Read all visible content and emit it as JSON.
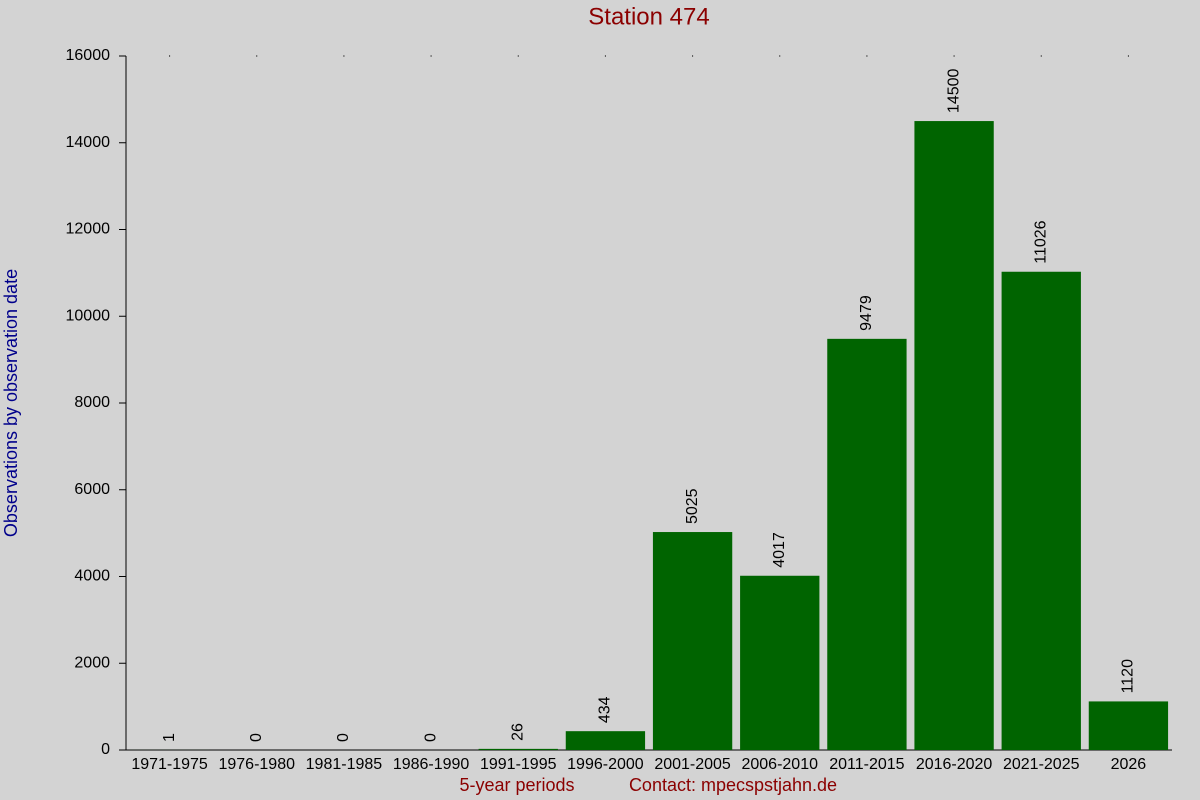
{
  "chart_data": {
    "type": "bar",
    "title": "Station 474",
    "ylabel": "Observations by observation date",
    "xlabel": "5-year periods",
    "contact": "Contact: mpecspstjahn.de",
    "categories": [
      "1971-1975",
      "1976-1980",
      "1981-1985",
      "1986-1990",
      "1991-1995",
      "1996-2000",
      "2001-2005",
      "2006-2010",
      "2011-2015",
      "2016-2020",
      "2021-2025",
      "2026"
    ],
    "values": [
      1,
      0,
      0,
      0,
      26,
      434,
      5025,
      4017,
      9479,
      14500,
      11026,
      1120
    ],
    "color": "#006400",
    "ylim": [
      0,
      16000
    ],
    "yticks": [
      0,
      2000,
      4000,
      6000,
      8000,
      10000,
      12000,
      14000,
      16000
    ],
    "grid": false
  }
}
